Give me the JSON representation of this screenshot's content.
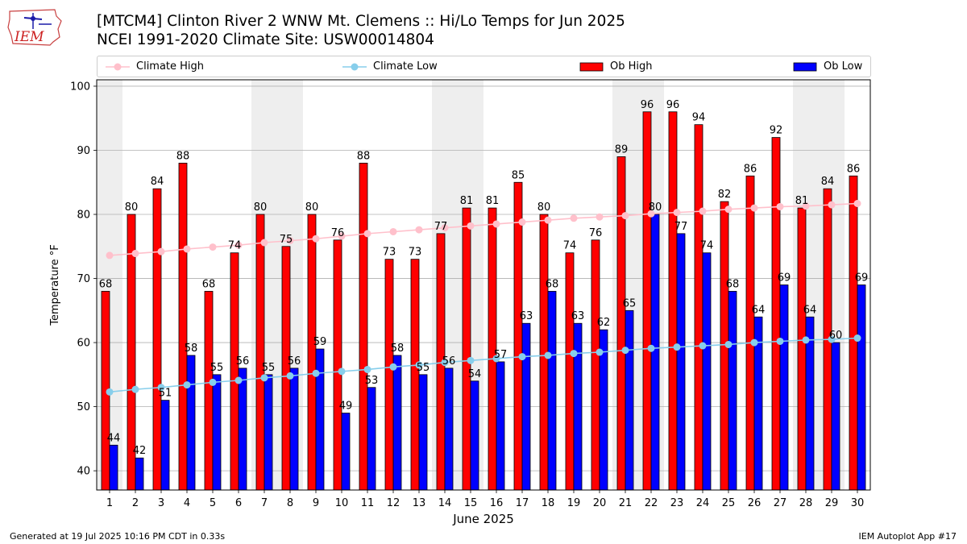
{
  "logo": {
    "text": "IEM"
  },
  "header": {
    "title_line1": "[MTCM4] Clinton River 2 WNW Mt. Clemens :: Hi/Lo Temps for Jun 2025",
    "title_line2": "NCEI 1991-2020 Climate Site: USW00014804"
  },
  "legend": {
    "climate_high": "Climate High",
    "climate_low": "Climate Low",
    "ob_high": "Ob High",
    "ob_low": "Ob Low"
  },
  "colors": {
    "ob_high": "#ff0000",
    "ob_low": "#0000ff",
    "climate_high": "#ffc0cb",
    "climate_low": "#87ceeb",
    "weekend_shade": "#eeeeee",
    "grid": "#b0b0b0"
  },
  "footer": {
    "left": "Generated at 19 Jul 2025 10:16 PM CDT in 0.33s",
    "right": "IEM Autoplot App #17"
  },
  "chart_data": {
    "type": "bar",
    "xlabel": "June 2025",
    "ylabel": "Temperature °F",
    "ylim": [
      37,
      101
    ],
    "yticks": [
      40,
      50,
      60,
      70,
      80,
      90,
      100
    ],
    "grid": "horizontal",
    "legend_placement": "top",
    "categories": [
      "1",
      "2",
      "3",
      "4",
      "5",
      "6",
      "7",
      "8",
      "9",
      "10",
      "11",
      "12",
      "13",
      "14",
      "15",
      "16",
      "17",
      "18",
      "19",
      "20",
      "21",
      "22",
      "23",
      "24",
      "25",
      "26",
      "27",
      "28",
      "29",
      "30"
    ],
    "shaded_days": [
      1,
      7,
      8,
      14,
      15,
      21,
      22,
      28,
      29
    ],
    "series": [
      {
        "name": "Ob High",
        "kind": "bar",
        "values": [
          68,
          80,
          84,
          88,
          68,
          74,
          80,
          75,
          80,
          76,
          88,
          73,
          73,
          77,
          81,
          81,
          85,
          80,
          74,
          76,
          89,
          96,
          96,
          94,
          82,
          86,
          92,
          81,
          84,
          86
        ]
      },
      {
        "name": "Ob Low",
        "kind": "bar",
        "values": [
          44,
          42,
          51,
          58,
          55,
          56,
          55,
          56,
          59,
          49,
          53,
          58,
          55,
          56,
          54,
          57,
          63,
          68,
          63,
          62,
          65,
          80,
          77,
          74,
          68,
          64,
          69,
          64,
          60,
          69
        ]
      },
      {
        "name": "Climate High",
        "kind": "line",
        "values": [
          73.6,
          73.9,
          74.2,
          74.6,
          74.9,
          75.2,
          75.6,
          75.9,
          76.2,
          76.6,
          77.0,
          77.3,
          77.6,
          77.9,
          78.2,
          78.5,
          78.8,
          79.1,
          79.4,
          79.6,
          79.8,
          80.1,
          80.3,
          80.5,
          80.8,
          81.0,
          81.2,
          81.3,
          81.5,
          81.7
        ]
      },
      {
        "name": "Climate Low",
        "kind": "line",
        "values": [
          52.3,
          52.7,
          53.0,
          53.4,
          53.8,
          54.1,
          54.5,
          54.8,
          55.2,
          55.5,
          55.8,
          56.2,
          56.5,
          56.9,
          57.2,
          57.5,
          57.8,
          58.0,
          58.3,
          58.5,
          58.8,
          59.1,
          59.3,
          59.5,
          59.7,
          60.0,
          60.2,
          60.4,
          60.5,
          60.7
        ]
      }
    ]
  }
}
